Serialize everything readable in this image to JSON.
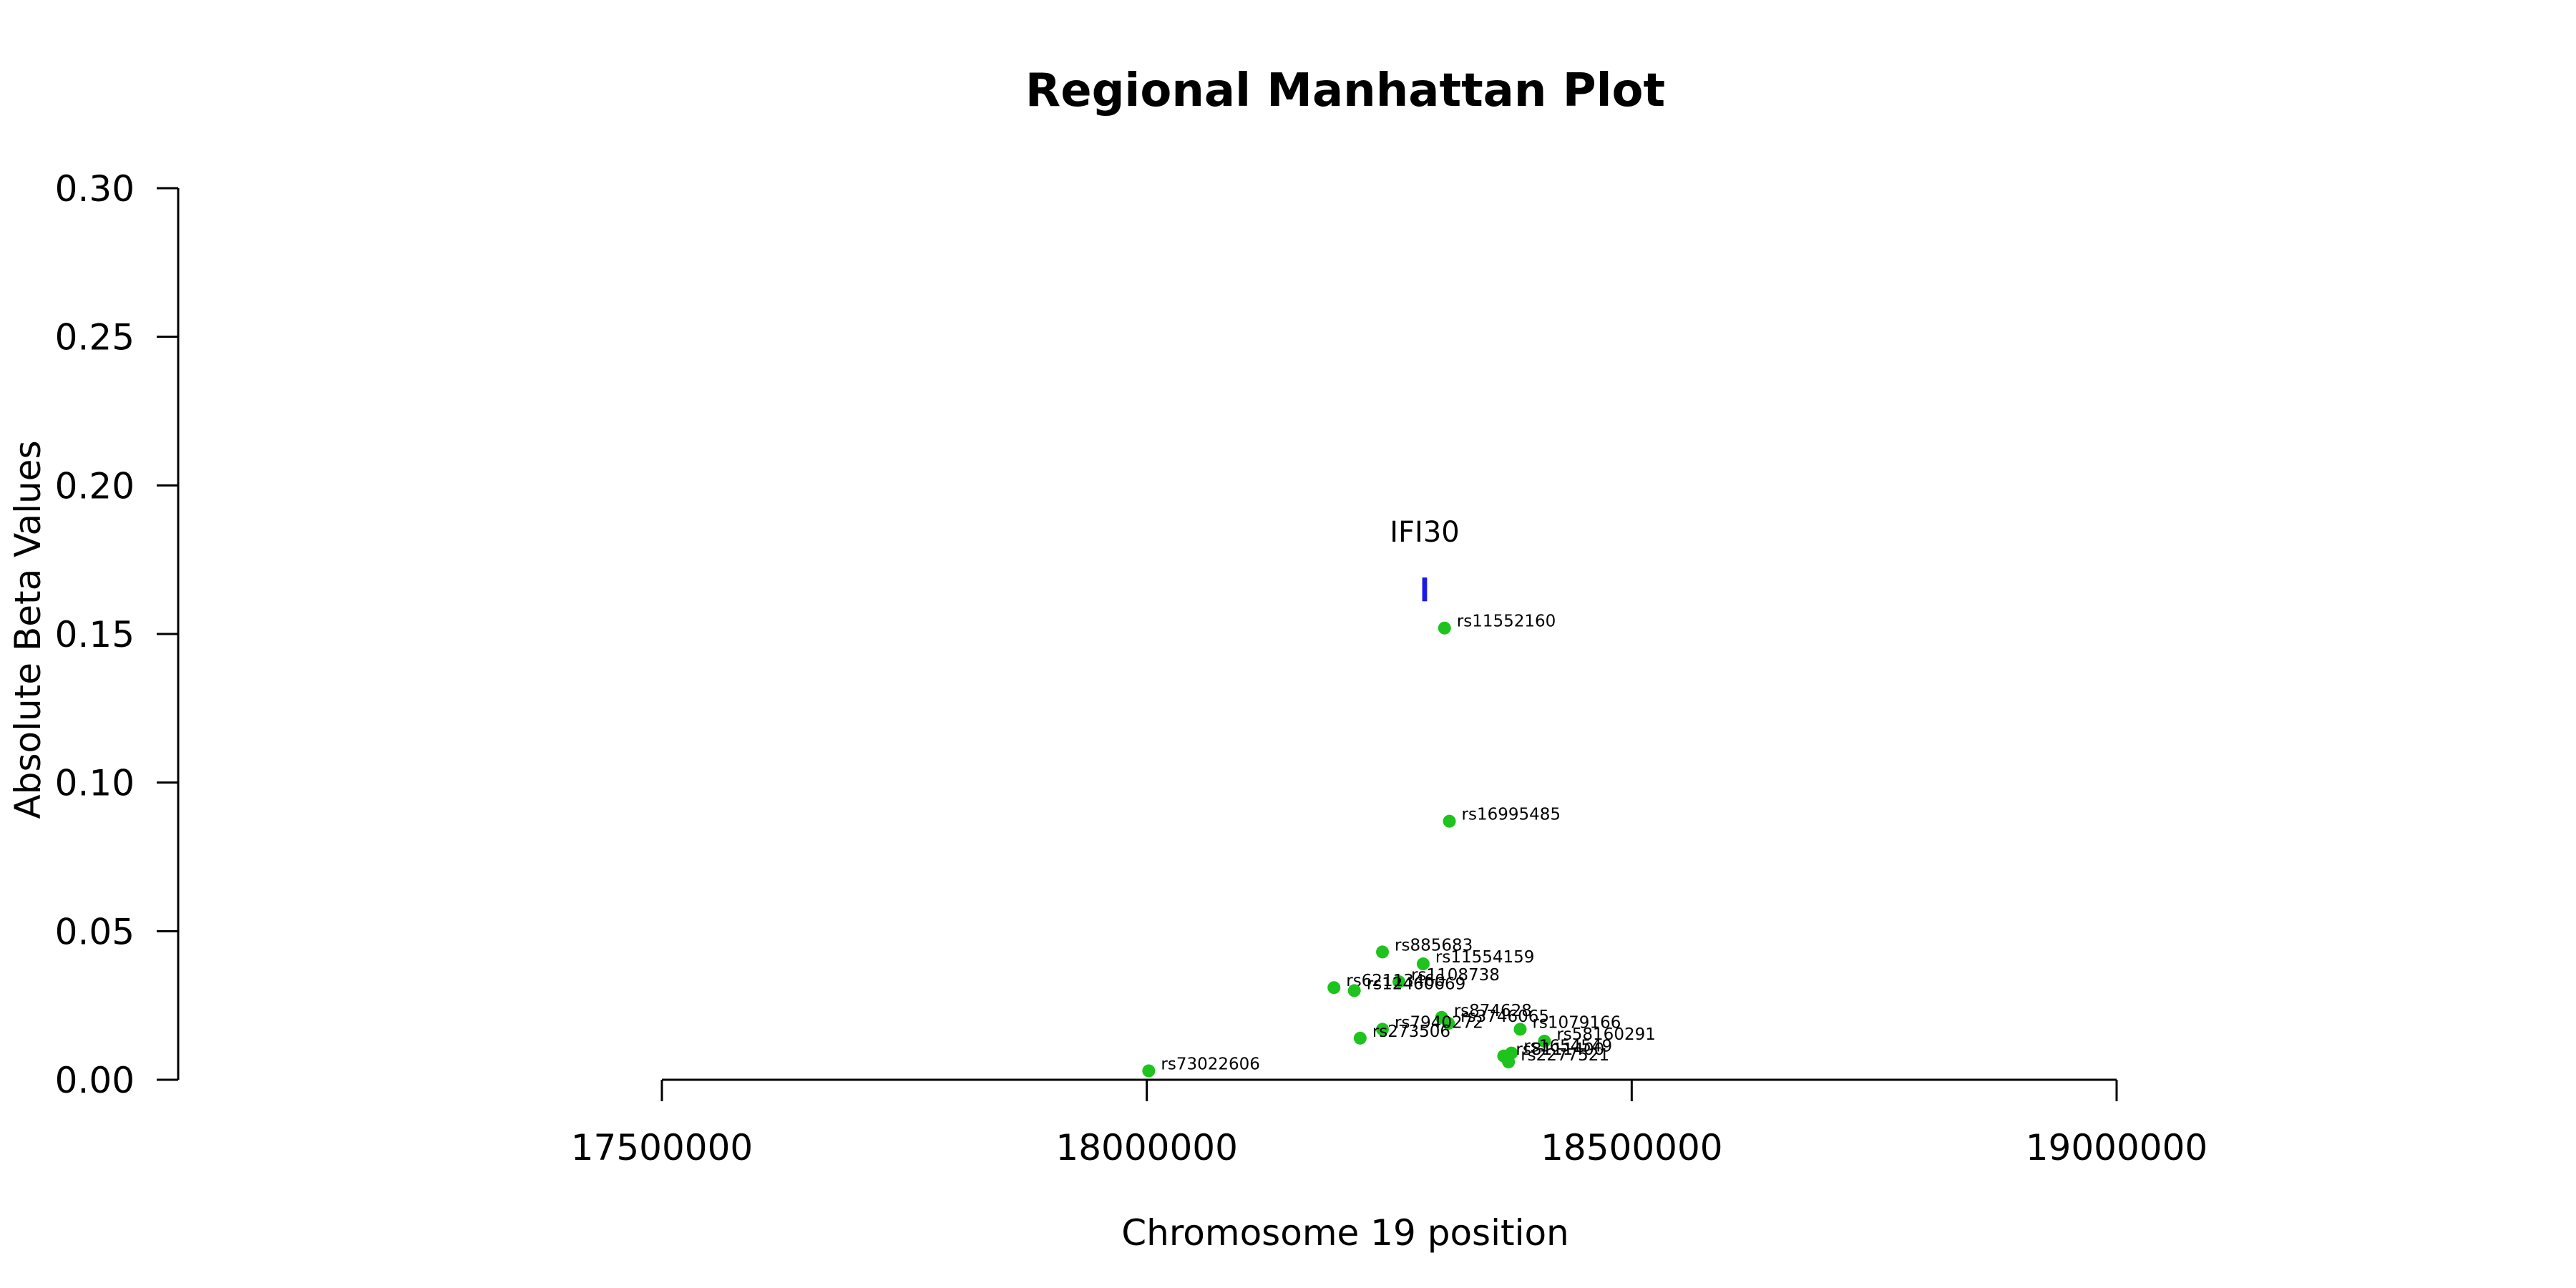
{
  "chart_data": {
    "type": "scatter",
    "title": "Regional Manhattan Plot",
    "xlabel": "Chromosome 19 position",
    "ylabel": "Absolute Beta Values",
    "xlim": [
      17500000,
      19000000
    ],
    "ylim": [
      0,
      0.3
    ],
    "x_ticks": [
      17500000,
      18000000,
      18500000,
      19000000
    ],
    "y_ticks": [
      0.0,
      0.05,
      0.1,
      0.15,
      0.2,
      0.25,
      0.3
    ],
    "x_tick_labels": [
      "17500000",
      "18000000",
      "18500000",
      "19000000"
    ],
    "y_tick_labels": [
      "0.00",
      "0.05",
      "0.10",
      "0.15",
      "0.20",
      "0.25",
      "0.30"
    ],
    "point_color": "#1ec31e",
    "gene_color": "#1a1ae6",
    "genes": [
      {
        "name": "IFI30",
        "start": 18284000,
        "end": 18289000,
        "y_low": 0.161,
        "y_high": 0.169
      }
    ],
    "points": [
      {
        "label": "rs11552160",
        "x": 18307000,
        "y": 0.152
      },
      {
        "label": "rs16995485",
        "x": 18312000,
        "y": 0.087
      },
      {
        "label": "rs885683",
        "x": 18243000,
        "y": 0.043
      },
      {
        "label": "rs11554159",
        "x": 18285000,
        "y": 0.039
      },
      {
        "label": "rs1108738",
        "x": 18260000,
        "y": 0.033
      },
      {
        "label": "rs62113460",
        "x": 18193000,
        "y": 0.031
      },
      {
        "label": "rs12460669",
        "x": 18214000,
        "y": 0.03
      },
      {
        "label": "rs874628",
        "x": 18304000,
        "y": 0.021
      },
      {
        "label": "rs3746065",
        "x": 18311000,
        "y": 0.019
      },
      {
        "label": "rs7940272",
        "x": 18243000,
        "y": 0.017
      },
      {
        "label": "rs1079166",
        "x": 18385000,
        "y": 0.017
      },
      {
        "label": "rs273506",
        "x": 18220000,
        "y": 0.014
      },
      {
        "label": "rs58160291",
        "x": 18410000,
        "y": 0.013
      },
      {
        "label": "rs1654549",
        "x": 18376000,
        "y": 0.009
      },
      {
        "label": "rs8111400",
        "x": 18368000,
        "y": 0.008
      },
      {
        "label": "rs2277521",
        "x": 18373000,
        "y": 0.006
      },
      {
        "label": "rs73022606",
        "x": 18002000,
        "y": 0.003
      }
    ]
  }
}
